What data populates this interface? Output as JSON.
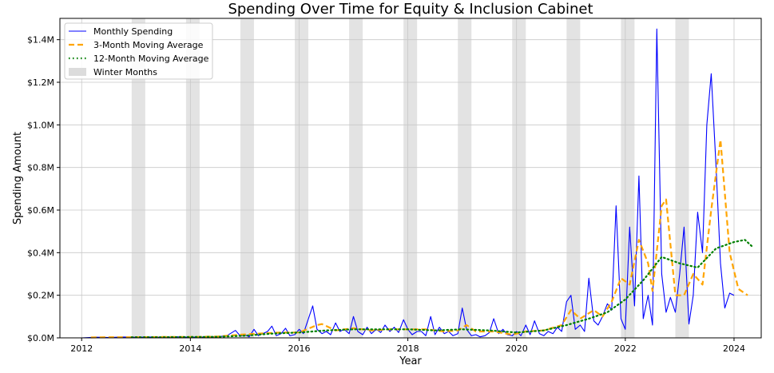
{
  "chart_data": {
    "type": "line",
    "title": "Spending Over Time for Equity & Inclusion Cabinet",
    "xlabel": "Year",
    "ylabel": "Spending Amount",
    "xlim": [
      2011.6,
      2024.5
    ],
    "ylim": [
      0,
      1500000
    ],
    "x_ticks": [
      2012,
      2014,
      2016,
      2018,
      2020,
      2022,
      2024
    ],
    "x_tick_labels": [
      "2012",
      "2014",
      "2016",
      "2018",
      "2020",
      "2022",
      "2024"
    ],
    "y_ticks": [
      0,
      200000,
      400000,
      600000,
      800000,
      1000000,
      1200000,
      1400000
    ],
    "y_tick_labels": [
      "$0.0M",
      "$0.2M",
      "$0.4M",
      "$0.6M",
      "$0.8M",
      "$1.0M",
      "$1.2M",
      "$1.4M"
    ],
    "grid": true,
    "legend_position": "upper-left",
    "winter_spans": [
      [
        2012.92,
        2013.17
      ],
      [
        2013.92,
        2014.17
      ],
      [
        2014.92,
        2015.17
      ],
      [
        2015.92,
        2016.17
      ],
      [
        2016.92,
        2017.17
      ],
      [
        2017.92,
        2018.17
      ],
      [
        2018.92,
        2019.17
      ],
      [
        2019.92,
        2020.17
      ],
      [
        2020.92,
        2021.17
      ],
      [
        2021.92,
        2022.17
      ],
      [
        2022.92,
        2023.17
      ]
    ],
    "series": [
      {
        "name": "Monthly Spending",
        "color": "#0000ff",
        "style": "solid",
        "points": [
          [
            2012.0,
            0
          ],
          [
            2012.25,
            3000
          ],
          [
            2012.5,
            2000
          ],
          [
            2012.75,
            4000
          ],
          [
            2013.0,
            3000
          ],
          [
            2013.25,
            4000
          ],
          [
            2013.5,
            3000
          ],
          [
            2013.75,
            5000
          ],
          [
            2014.0,
            3000
          ],
          [
            2014.25,
            4000
          ],
          [
            2014.5,
            5000
          ],
          [
            2014.67,
            10000
          ],
          [
            2014.83,
            35000
          ],
          [
            2014.92,
            8000
          ],
          [
            2015.0,
            15000
          ],
          [
            2015.08,
            5000
          ],
          [
            2015.17,
            40000
          ],
          [
            2015.25,
            10000
          ],
          [
            2015.42,
            30000
          ],
          [
            2015.5,
            55000
          ],
          [
            2015.58,
            10000
          ],
          [
            2015.67,
            20000
          ],
          [
            2015.75,
            45000
          ],
          [
            2015.83,
            10000
          ],
          [
            2015.92,
            15000
          ],
          [
            2016.0,
            40000
          ],
          [
            2016.08,
            20000
          ],
          [
            2016.25,
            150000
          ],
          [
            2016.33,
            40000
          ],
          [
            2016.42,
            20000
          ],
          [
            2016.5,
            30000
          ],
          [
            2016.58,
            15000
          ],
          [
            2016.67,
            70000
          ],
          [
            2016.75,
            30000
          ],
          [
            2016.83,
            40000
          ],
          [
            2016.92,
            20000
          ],
          [
            2017.0,
            100000
          ],
          [
            2017.08,
            30000
          ],
          [
            2017.17,
            15000
          ],
          [
            2017.25,
            50000
          ],
          [
            2017.33,
            20000
          ],
          [
            2017.42,
            40000
          ],
          [
            2017.5,
            25000
          ],
          [
            2017.58,
            60000
          ],
          [
            2017.67,
            30000
          ],
          [
            2017.75,
            50000
          ],
          [
            2017.83,
            25000
          ],
          [
            2017.92,
            85000
          ],
          [
            2018.0,
            40000
          ],
          [
            2018.08,
            15000
          ],
          [
            2018.17,
            30000
          ],
          [
            2018.25,
            30000
          ],
          [
            2018.33,
            10000
          ],
          [
            2018.42,
            100000
          ],
          [
            2018.5,
            15000
          ],
          [
            2018.58,
            50000
          ],
          [
            2018.67,
            20000
          ],
          [
            2018.75,
            30000
          ],
          [
            2018.83,
            10000
          ],
          [
            2018.92,
            20000
          ],
          [
            2019.0,
            140000
          ],
          [
            2019.08,
            40000
          ],
          [
            2019.17,
            10000
          ],
          [
            2019.25,
            15000
          ],
          [
            2019.33,
            5000
          ],
          [
            2019.42,
            10000
          ],
          [
            2019.5,
            25000
          ],
          [
            2019.58,
            90000
          ],
          [
            2019.67,
            20000
          ],
          [
            2019.75,
            40000
          ],
          [
            2019.83,
            15000
          ],
          [
            2019.92,
            10000
          ],
          [
            2020.0,
            30000
          ],
          [
            2020.08,
            10000
          ],
          [
            2020.17,
            60000
          ],
          [
            2020.25,
            15000
          ],
          [
            2020.33,
            80000
          ],
          [
            2020.42,
            20000
          ],
          [
            2020.5,
            10000
          ],
          [
            2020.58,
            30000
          ],
          [
            2020.67,
            20000
          ],
          [
            2020.75,
            50000
          ],
          [
            2020.83,
            30000
          ],
          [
            2020.92,
            170000
          ],
          [
            2021.0,
            200000
          ],
          [
            2021.08,
            40000
          ],
          [
            2021.17,
            60000
          ],
          [
            2021.25,
            30000
          ],
          [
            2021.33,
            280000
          ],
          [
            2021.42,
            80000
          ],
          [
            2021.5,
            60000
          ],
          [
            2021.58,
            100000
          ],
          [
            2021.67,
            160000
          ],
          [
            2021.75,
            130000
          ],
          [
            2021.83,
            620000
          ],
          [
            2021.92,
            90000
          ],
          [
            2022.0,
            40000
          ],
          [
            2022.08,
            520000
          ],
          [
            2022.17,
            150000
          ],
          [
            2022.25,
            760000
          ],
          [
            2022.33,
            90000
          ],
          [
            2022.42,
            200000
          ],
          [
            2022.5,
            60000
          ],
          [
            2022.58,
            1450000
          ],
          [
            2022.67,
            300000
          ],
          [
            2022.75,
            120000
          ],
          [
            2022.83,
            190000
          ],
          [
            2022.92,
            120000
          ],
          [
            2023.0,
            300000
          ],
          [
            2023.08,
            520000
          ],
          [
            2023.17,
            65000
          ],
          [
            2023.25,
            200000
          ],
          [
            2023.33,
            590000
          ],
          [
            2023.42,
            400000
          ],
          [
            2023.5,
            1000000
          ],
          [
            2023.58,
            1240000
          ],
          [
            2023.67,
            800000
          ],
          [
            2023.75,
            350000
          ],
          [
            2023.83,
            140000
          ],
          [
            2023.92,
            210000
          ],
          [
            2024.0,
            200000
          ]
        ]
      },
      {
        "name": "3-Month Moving Average",
        "color": "#ffa500",
        "style": "dashed",
        "points": [
          [
            2012.17,
            2000
          ],
          [
            2012.5,
            3000
          ],
          [
            2013.0,
            3000
          ],
          [
            2013.5,
            4000
          ],
          [
            2014.0,
            4000
          ],
          [
            2014.5,
            6000
          ],
          [
            2014.92,
            15000
          ],
          [
            2015.25,
            20000
          ],
          [
            2015.67,
            25000
          ],
          [
            2016.0,
            25000
          ],
          [
            2016.33,
            60000
          ],
          [
            2016.42,
            65000
          ],
          [
            2016.67,
            35000
          ],
          [
            2017.0,
            45000
          ],
          [
            2017.33,
            35000
          ],
          [
            2017.67,
            40000
          ],
          [
            2018.0,
            40000
          ],
          [
            2018.33,
            40000
          ],
          [
            2018.67,
            30000
          ],
          [
            2018.92,
            35000
          ],
          [
            2019.08,
            60000
          ],
          [
            2019.25,
            30000
          ],
          [
            2019.58,
            30000
          ],
          [
            2019.92,
            15000
          ],
          [
            2020.17,
            30000
          ],
          [
            2020.5,
            35000
          ],
          [
            2020.83,
            60000
          ],
          [
            2021.0,
            130000
          ],
          [
            2021.17,
            90000
          ],
          [
            2021.42,
            130000
          ],
          [
            2021.58,
            100000
          ],
          [
            2021.75,
            170000
          ],
          [
            2021.92,
            280000
          ],
          [
            2022.08,
            250000
          ],
          [
            2022.25,
            460000
          ],
          [
            2022.42,
            350000
          ],
          [
            2022.5,
            220000
          ],
          [
            2022.67,
            620000
          ],
          [
            2022.75,
            650000
          ],
          [
            2022.92,
            200000
          ],
          [
            2023.08,
            200000
          ],
          [
            2023.25,
            300000
          ],
          [
            2023.42,
            250000
          ],
          [
            2023.58,
            600000
          ],
          [
            2023.75,
            930000
          ],
          [
            2023.92,
            400000
          ],
          [
            2024.08,
            230000
          ],
          [
            2024.25,
            200000
          ]
        ]
      },
      {
        "name": "12-Month Moving Average",
        "color": "#008000",
        "style": "dotted",
        "points": [
          [
            2012.92,
            3000
          ],
          [
            2013.5,
            3000
          ],
          [
            2014.0,
            4000
          ],
          [
            2014.5,
            5000
          ],
          [
            2015.0,
            10000
          ],
          [
            2015.5,
            20000
          ],
          [
            2016.0,
            25000
          ],
          [
            2016.5,
            35000
          ],
          [
            2017.0,
            40000
          ],
          [
            2017.5,
            40000
          ],
          [
            2018.0,
            40000
          ],
          [
            2018.5,
            35000
          ],
          [
            2019.0,
            40000
          ],
          [
            2019.5,
            35000
          ],
          [
            2020.0,
            25000
          ],
          [
            2020.5,
            35000
          ],
          [
            2020.92,
            60000
          ],
          [
            2021.33,
            90000
          ],
          [
            2021.67,
            120000
          ],
          [
            2022.0,
            180000
          ],
          [
            2022.33,
            270000
          ],
          [
            2022.67,
            380000
          ],
          [
            2023.0,
            350000
          ],
          [
            2023.33,
            330000
          ],
          [
            2023.67,
            420000
          ],
          [
            2024.0,
            450000
          ],
          [
            2024.2,
            460000
          ],
          [
            2024.33,
            430000
          ]
        ]
      },
      {
        "name": "Winter Months",
        "color": "#dcdcdc",
        "style": "patch"
      }
    ]
  }
}
